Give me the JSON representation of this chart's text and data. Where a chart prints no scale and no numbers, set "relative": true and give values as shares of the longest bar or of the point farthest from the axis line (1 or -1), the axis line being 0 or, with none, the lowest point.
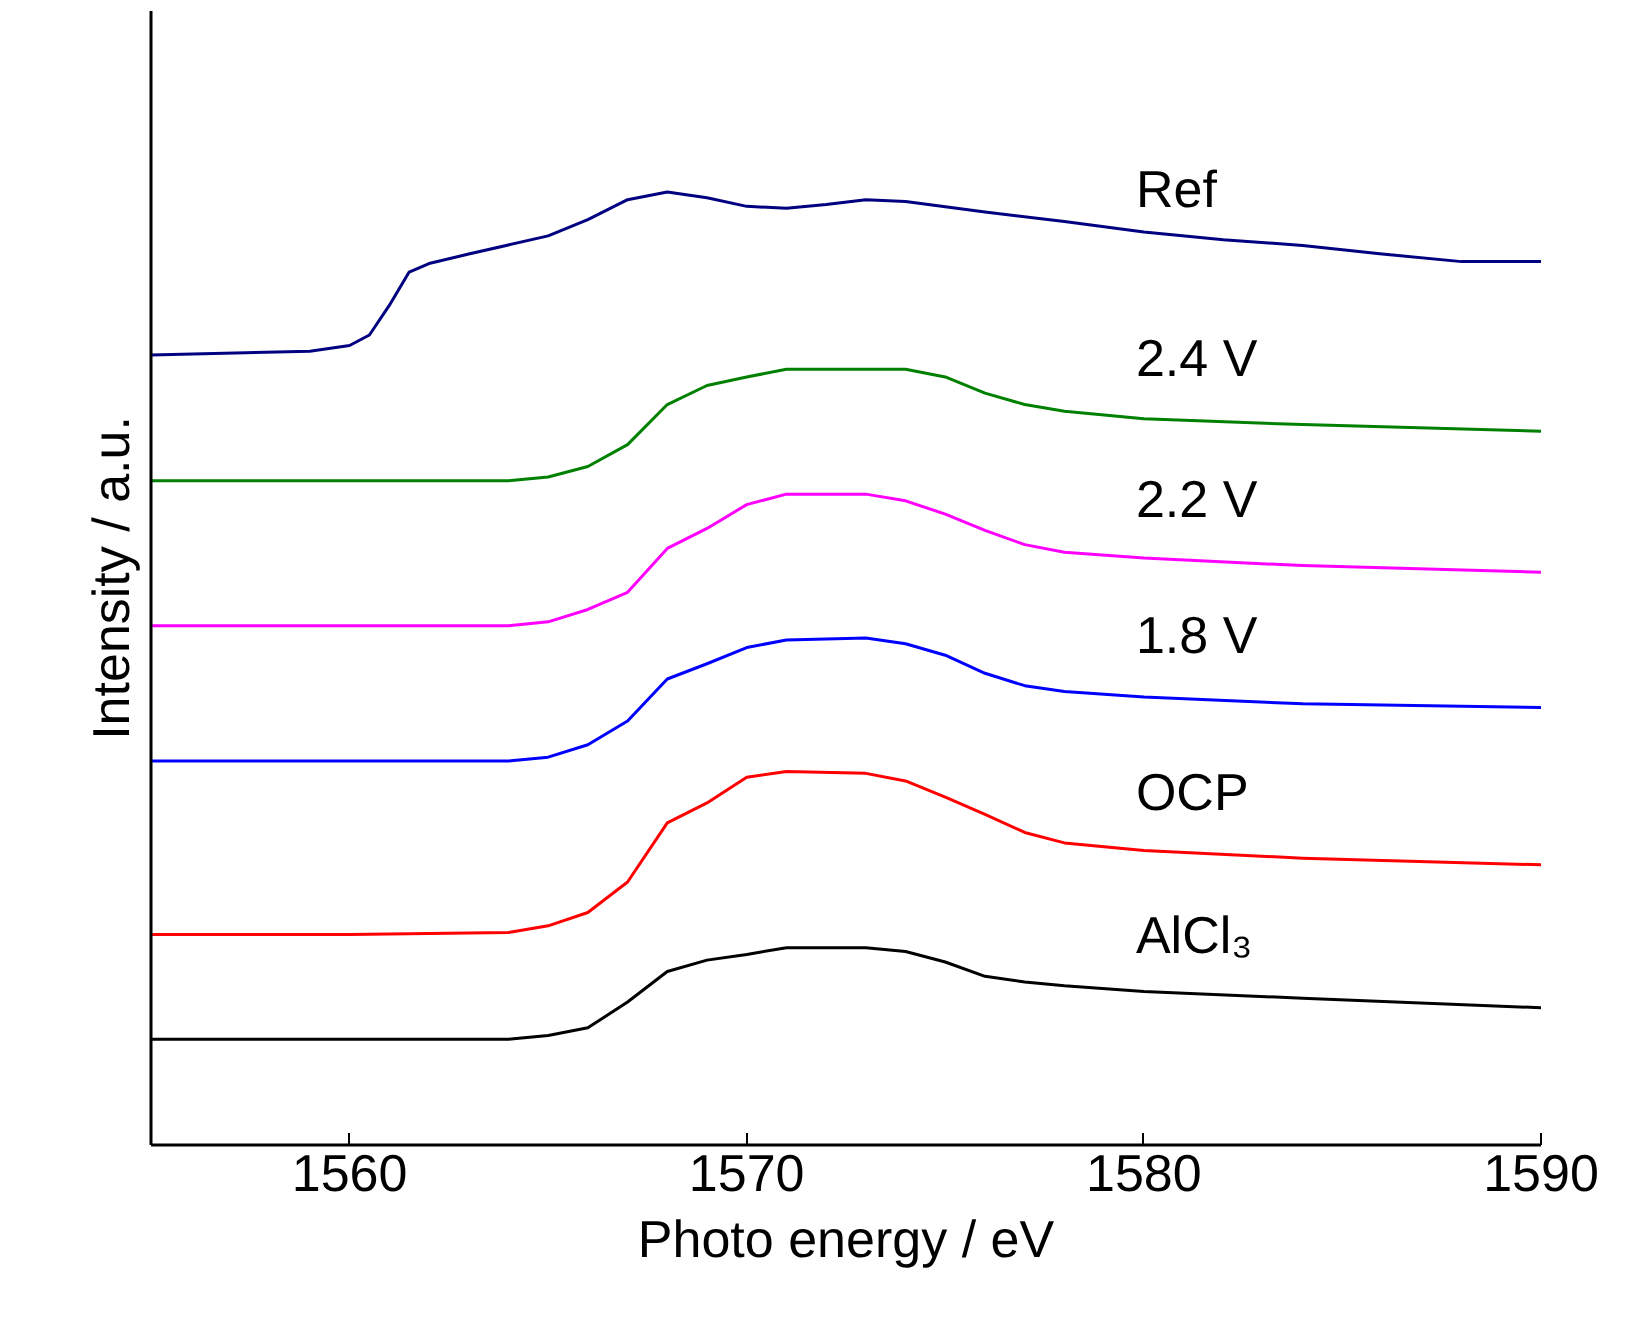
{
  "chart_data": {
    "type": "line",
    "relative": true,
    "xlabel": "Photo energy / eV",
    "ylabel": "Intensity / a.u.",
    "xlim": [
      1555,
      1590
    ],
    "xticks": [
      1560,
      1570,
      1580,
      1590
    ],
    "grid": false,
    "marker": "none",
    "line_style": "solid",
    "series": [
      {
        "name": "AlCl₃",
        "color": "#000000",
        "x": [
          1555,
          1560,
          1564,
          1565,
          1566,
          1567,
          1568,
          1569,
          1570,
          1571,
          1573,
          1574,
          1575,
          1576,
          1577,
          1578,
          1580,
          1584,
          1590
        ],
        "values": [
          0.111,
          0.111,
          0.111,
          0.115,
          0.123,
          0.15,
          0.182,
          0.194,
          0.2,
          0.207,
          0.207,
          0.203,
          0.192,
          0.177,
          0.171,
          0.167,
          0.161,
          0.154,
          0.144
        ]
      },
      {
        "name": "OCP",
        "color": "#ff0000",
        "x": [
          1555,
          1560,
          1564,
          1565,
          1566,
          1567,
          1568,
          1569,
          1570,
          1571,
          1573,
          1574,
          1575,
          1576,
          1577,
          1578,
          1580,
          1584,
          1590
        ],
        "values": [
          0.221,
          0.221,
          0.223,
          0.23,
          0.244,
          0.276,
          0.338,
          0.359,
          0.386,
          0.392,
          0.39,
          0.382,
          0.365,
          0.347,
          0.328,
          0.317,
          0.309,
          0.301,
          0.294
        ]
      },
      {
        "name": "1.8 V",
        "color": "#0000ff",
        "x": [
          1555,
          1560,
          1564,
          1565,
          1566,
          1567,
          1568,
          1569,
          1570,
          1571,
          1573,
          1574,
          1575,
          1576,
          1577,
          1578,
          1580,
          1584,
          1590
        ],
        "values": [
          0.403,
          0.403,
          0.403,
          0.407,
          0.42,
          0.445,
          0.489,
          0.505,
          0.522,
          0.53,
          0.532,
          0.526,
          0.514,
          0.495,
          0.482,
          0.476,
          0.47,
          0.463,
          0.459
        ]
      },
      {
        "name": "2.2 V",
        "color": "#ff00ff",
        "x": [
          1555,
          1560,
          1564,
          1565,
          1566,
          1567,
          1568,
          1569,
          1570,
          1571,
          1573,
          1574,
          1575,
          1576,
          1577,
          1578,
          1580,
          1584,
          1590
        ],
        "values": [
          0.545,
          0.545,
          0.545,
          0.549,
          0.562,
          0.58,
          0.626,
          0.647,
          0.672,
          0.683,
          0.683,
          0.676,
          0.662,
          0.645,
          0.63,
          0.622,
          0.616,
          0.608,
          0.601
        ]
      },
      {
        "name": "2.4 V",
        "color": "#008000",
        "x": [
          1555,
          1560,
          1564,
          1565,
          1566,
          1567,
          1568,
          1569,
          1570,
          1571,
          1573,
          1574,
          1575,
          1576,
          1577,
          1578,
          1580,
          1584,
          1590
        ],
        "values": [
          0.697,
          0.697,
          0.697,
          0.701,
          0.712,
          0.735,
          0.777,
          0.797,
          0.806,
          0.814,
          0.814,
          0.814,
          0.806,
          0.789,
          0.777,
          0.77,
          0.762,
          0.756,
          0.749
        ]
      },
      {
        "name": "Ref",
        "color": "#000080",
        "x": [
          1555,
          1559,
          1560,
          1560.5,
          1561,
          1561.5,
          1562,
          1563,
          1565,
          1566,
          1567,
          1568,
          1569,
          1570,
          1571,
          1572,
          1573,
          1574,
          1576,
          1578,
          1580,
          1582,
          1584,
          1586,
          1588,
          1590
        ],
        "values": [
          0.829,
          0.833,
          0.839,
          0.85,
          0.881,
          0.916,
          0.925,
          0.935,
          0.954,
          0.971,
          0.992,
          1,
          0.994,
          0.985,
          0.983,
          0.987,
          0.992,
          0.99,
          0.979,
          0.969,
          0.958,
          0.95,
          0.944,
          0.935,
          0.927,
          0.927
        ]
      }
    ]
  }
}
